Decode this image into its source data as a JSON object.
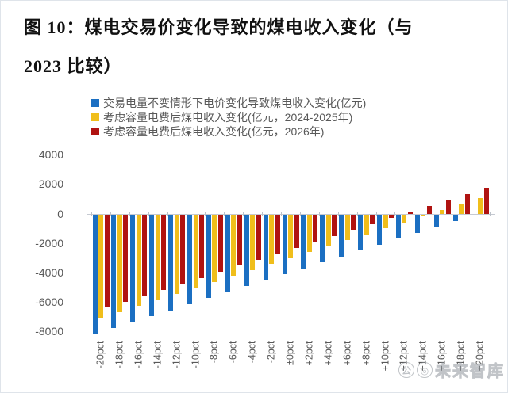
{
  "figure": {
    "title_line1": "图 10：煤电交易价变化导致的煤电收入变化（与",
    "title_line2": "2023 比较）"
  },
  "watermark": {
    "text": "未来智库"
  },
  "chart_data": {
    "type": "bar",
    "title": "煤电交易价变化导致的煤电收入变化（与2023比较）",
    "xlabel": "",
    "ylabel": "亿元",
    "ylim": [
      -8000,
      4000
    ],
    "grid": false,
    "legend_position": "top-left",
    "y_ticks": [
      4000,
      2000,
      0,
      -2000,
      -4000,
      -6000,
      -8000
    ],
    "categories": [
      "-20pct",
      "-18pct",
      "-16pct",
      "-14pct",
      "-12pct",
      "-10pct",
      "-8pct",
      "-6pct",
      "-4pct",
      "-2pct",
      "±0pct",
      "+2pct",
      "+4pct",
      "+6pct",
      "+8pct",
      "+10pct",
      "+12pct",
      "+14pct",
      "+16pct",
      "+18pct",
      "+20pct"
    ],
    "series": [
      {
        "name": "交易电量不变情形下电价变化导致煤电收入变化(亿元)",
        "color": "#1B6FC2",
        "values": [
          -8100,
          -7695,
          -7290,
          -6885,
          -6480,
          -6075,
          -5670,
          -5265,
          -4860,
          -4455,
          -4050,
          -3645,
          -3240,
          -2835,
          -2430,
          -2025,
          -1620,
          -1215,
          -810,
          -405,
          0
        ]
      },
      {
        "name": "考虑容量电费后煤电收入变化(亿元，2024-2025年)",
        "color": "#F0BE1B",
        "values": [
          -7000,
          -6595,
          -6190,
          -5785,
          -5380,
          -4975,
          -4570,
          -4165,
          -3760,
          -3355,
          -2950,
          -2545,
          -2140,
          -1735,
          -1330,
          -925,
          -520,
          -115,
          290,
          695,
          1100
        ]
      },
      {
        "name": "考虑容量电费后煤电收入变化(亿元，2026年)",
        "color": "#B01311",
        "values": [
          -6300,
          -5895,
          -5490,
          -5085,
          -4680,
          -4275,
          -3870,
          -3465,
          -3060,
          -2655,
          -2250,
          -1845,
          -1440,
          -1035,
          -630,
          -225,
          180,
          585,
          990,
          1395,
          1800
        ]
      }
    ]
  }
}
